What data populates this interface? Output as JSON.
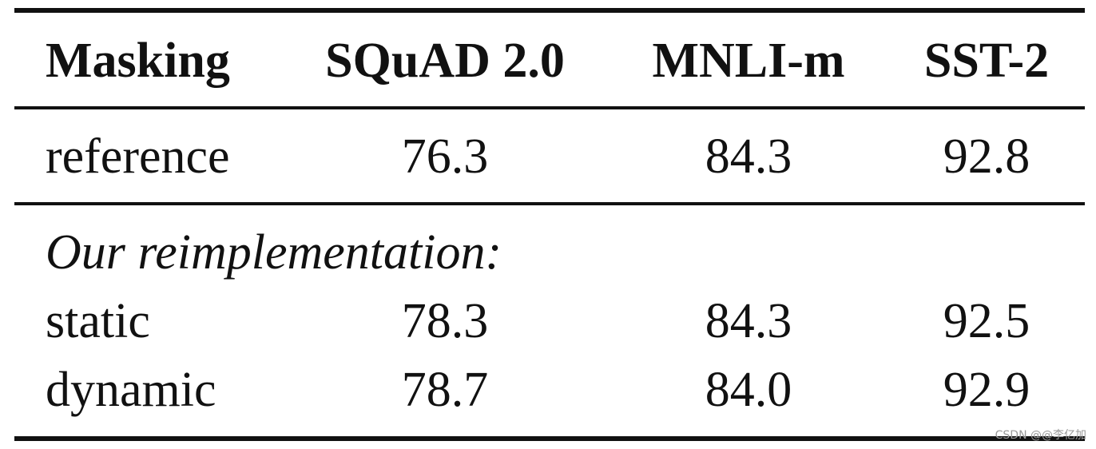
{
  "table": {
    "header": [
      "Masking",
      "SQuAD 2.0",
      "MNLI-m",
      "SST-2"
    ],
    "rows": [
      [
        "reference",
        "76.3",
        "84.3",
        "92.8"
      ]
    ],
    "section": "Our reimplementation:",
    "section_rows": [
      [
        "static",
        "78.3",
        "84.3",
        "92.5"
      ],
      [
        "dynamic",
        "78.7",
        "84.0",
        "92.9"
      ]
    ]
  },
  "watermark": "CSDN @@李亿加"
}
